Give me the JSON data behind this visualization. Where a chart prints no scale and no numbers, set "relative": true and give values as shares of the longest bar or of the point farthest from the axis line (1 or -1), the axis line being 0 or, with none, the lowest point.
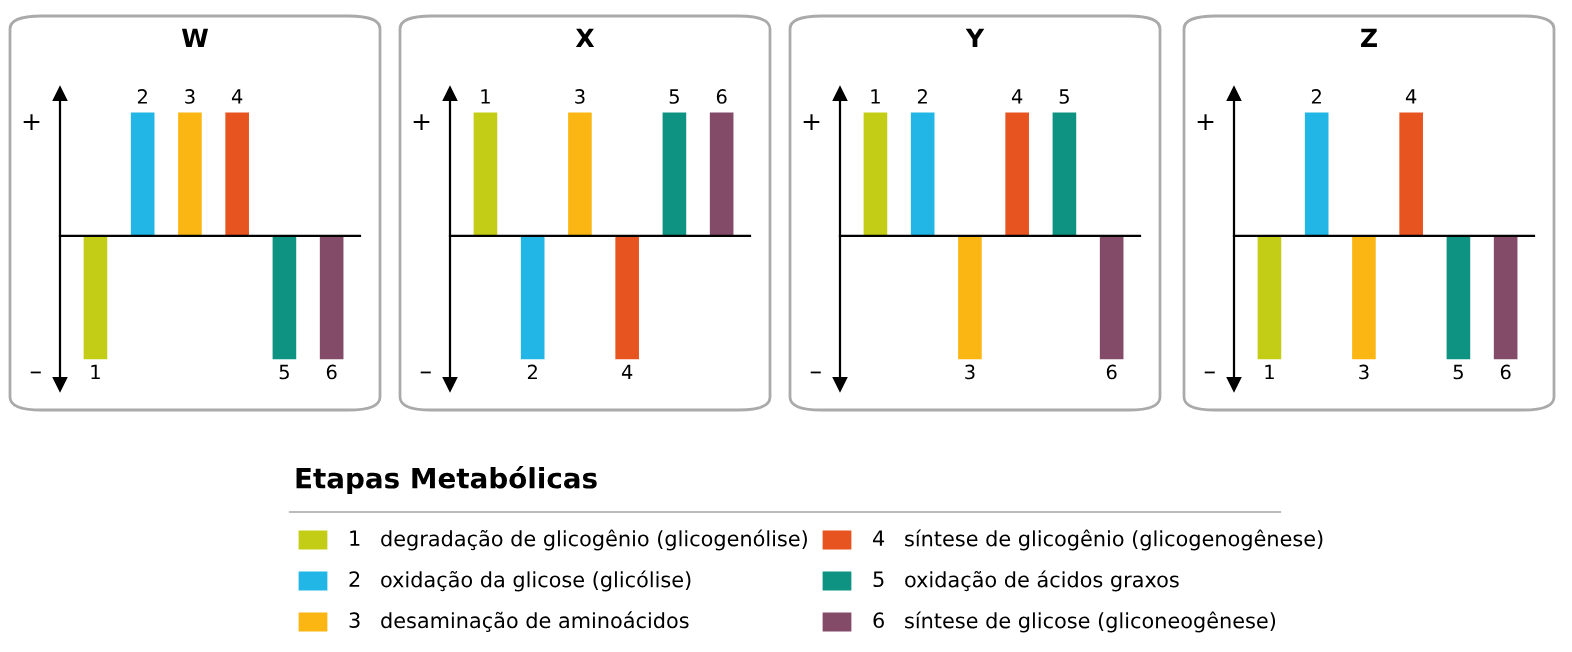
{
  "chart_data": [
    {
      "type": "bar",
      "title": "W",
      "relative": true,
      "categories": [
        "1",
        "2",
        "3",
        "4",
        "5",
        "6"
      ],
      "values": [
        -1,
        1,
        1,
        1,
        -1,
        -1
      ],
      "colors": [
        "#c3cd16",
        "#22b6e6",
        "#fbb613",
        "#e75420",
        "#0e9383",
        "#844b69"
      ],
      "annotations": [
        "+",
        "–"
      ]
    },
    {
      "type": "bar",
      "title": "X",
      "relative": true,
      "categories": [
        "1",
        "2",
        "3",
        "4",
        "5",
        "6"
      ],
      "values": [
        1,
        -1,
        1,
        -1,
        1,
        1
      ],
      "colors": [
        "#c3cd16",
        "#22b6e6",
        "#fbb613",
        "#e75420",
        "#0e9383",
        "#844b69"
      ],
      "annotations": [
        "+",
        "–"
      ]
    },
    {
      "type": "bar",
      "title": "Y",
      "relative": true,
      "categories": [
        "1",
        "2",
        "3",
        "4",
        "5",
        "6"
      ],
      "values": [
        1,
        1,
        -1,
        1,
        1,
        -1
      ],
      "colors": [
        "#c3cd16",
        "#22b6e6",
        "#fbb613",
        "#e75420",
        "#0e9383",
        "#844b69"
      ],
      "annotations": [
        "+",
        "–"
      ]
    },
    {
      "type": "bar",
      "title": "Z",
      "relative": true,
      "categories": [
        "1",
        "2",
        "3",
        "4",
        "5",
        "6"
      ],
      "values": [
        -1,
        1,
        -1,
        1,
        -1,
        -1
      ],
      "colors": [
        "#c3cd16",
        "#22b6e6",
        "#fbb613",
        "#e75420",
        "#0e9383",
        "#844b69"
      ],
      "annotations": [
        "+",
        "–"
      ]
    },
    {
      "type": "other",
      "legend_title": "Etapas Metabólicas",
      "categories": [
        "1",
        "2",
        "3",
        "4",
        "5",
        "6"
      ],
      "colors": [
        "#c3cd16",
        "#22b6e6",
        "#fbb613",
        "#e75420",
        "#0e9383",
        "#844b69"
      ],
      "annotations": [
        "degradação de glicogênio (glicogenólise)",
        "oxidação da glicose (glicólise)",
        "desaminação de aminoácidos",
        "síntese de glicogênio (glicogenogênese)",
        "oxidação de ácidos graxos",
        "síntese de glicose (gliconeogênese)"
      ]
    }
  ]
}
